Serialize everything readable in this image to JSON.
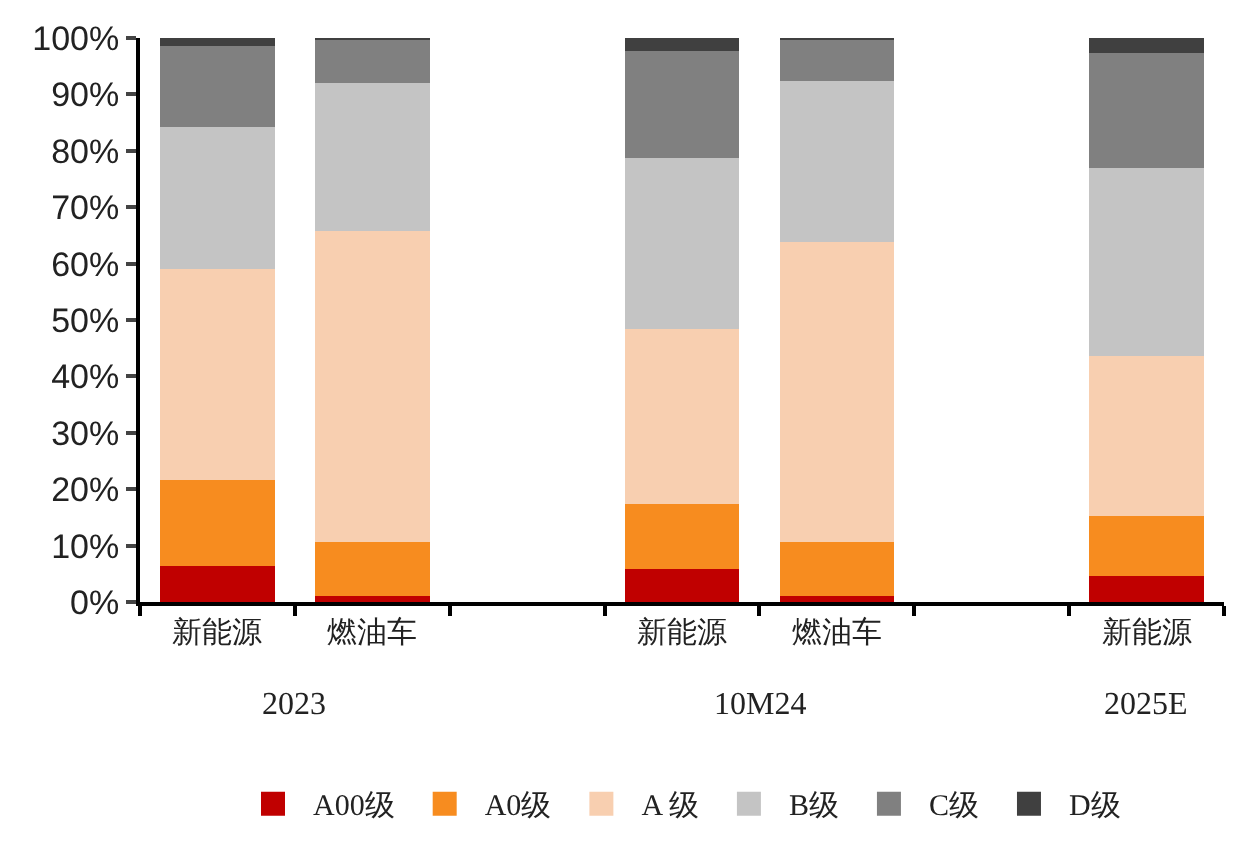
{
  "chart_data": {
    "type": "bar",
    "stacked": true,
    "categories": [
      "新能源",
      "燃油车",
      null,
      "新能源",
      "燃油车",
      null,
      "新能源"
    ],
    "series": [
      {
        "name": "A00级",
        "color": "#c00000",
        "values": [
          6.3,
          1.1,
          null,
          5.9,
          1.1,
          null,
          4.7
        ]
      },
      {
        "name": "A0级",
        "color": "#f78c1f",
        "values": [
          15.4,
          9.6,
          null,
          11.5,
          9.6,
          null,
          10.5
        ]
      },
      {
        "name": "A 级",
        "color": "#f8cfb0",
        "values": [
          37.4,
          55.0,
          null,
          31.0,
          53.2,
          null,
          28.4
        ]
      },
      {
        "name": "B级",
        "color": "#c4c4c4",
        "values": [
          25.1,
          26.4,
          null,
          30.4,
          28.5,
          null,
          33.4
        ]
      },
      {
        "name": "C级",
        "color": "#808080",
        "values": [
          14.4,
          7.6,
          null,
          18.9,
          7.3,
          null,
          20.4
        ]
      },
      {
        "name": "D级",
        "color": "#404040",
        "values": [
          1.4,
          0.3,
          null,
          2.3,
          0.3,
          null,
          2.6
        ]
      }
    ],
    "ylim": [
      0,
      100
    ],
    "yticks": [
      {
        "value": 0,
        "label": "0%"
      },
      {
        "value": 10,
        "label": "10%"
      },
      {
        "value": 20,
        "label": "20%"
      },
      {
        "value": 30,
        "label": "30%"
      },
      {
        "value": 40,
        "label": "40%"
      },
      {
        "value": 50,
        "label": "50%"
      },
      {
        "value": 60,
        "label": "60%"
      },
      {
        "value": 70,
        "label": "70%"
      },
      {
        "value": 80,
        "label": "80%"
      },
      {
        "value": 90,
        "label": "90%"
      },
      {
        "value": 100,
        "label": "100%"
      }
    ],
    "annotations": [
      "2023",
      "10M24",
      "2025E"
    ],
    "legend": "bottom"
  }
}
